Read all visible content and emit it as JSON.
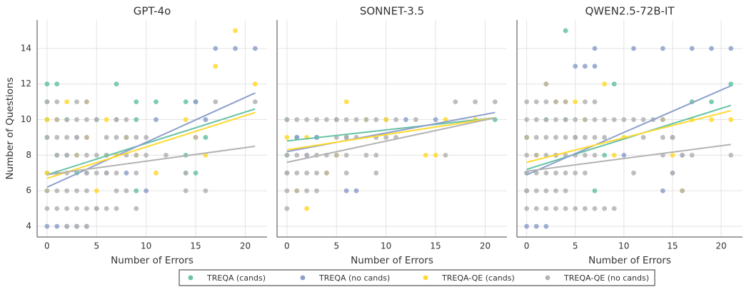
{
  "chart_data": [
    {
      "type": "scatter",
      "title": "GPT-4o",
      "xlabel": "Number of Errors",
      "ylabel": "Number of Questions",
      "xlim": [
        -1,
        22.2
      ],
      "ylim": [
        3.4,
        15.6
      ],
      "xticks": [
        0,
        5,
        10,
        15,
        20
      ],
      "yticks": [
        4,
        6,
        8,
        10,
        12,
        14
      ],
      "grid": true,
      "series": [
        {
          "name": "TREQA (cands)",
          "color": "#66c2a5",
          "x": [
            0,
            1,
            0,
            7,
            9,
            11,
            14,
            15,
            0,
            2,
            5,
            9,
            16,
            0,
            3,
            6,
            14,
            15,
            14,
            9,
            0,
            1
          ],
          "values": [
            12,
            12,
            11,
            12,
            11,
            11,
            11,
            11,
            10,
            10,
            10,
            10,
            9,
            7,
            7,
            8,
            8,
            7,
            7,
            6,
            9,
            8
          ],
          "trend": {
            "x": [
              0,
              21
            ],
            "values": [
              6.9,
              10.6
            ]
          }
        },
        {
          "name": "TREQA (no cands)",
          "color": "#8da0cb",
          "x": [
            17,
            19,
            21,
            15,
            16,
            7,
            11,
            10,
            8,
            5,
            0,
            1,
            2,
            3,
            4,
            4,
            2,
            3,
            6,
            8
          ],
          "values": [
            14,
            14,
            14,
            11,
            10,
            10,
            10,
            6,
            7,
            5,
            4,
            4,
            4,
            4,
            4,
            7,
            8,
            9,
            7,
            9
          ],
          "trend": {
            "x": [
              0,
              21
            ],
            "values": [
              6.2,
              11.5
            ]
          }
        },
        {
          "name": "TREQA-QE (cands)",
          "color": "#ffd92f",
          "x": [
            19,
            17,
            21,
            2,
            4,
            0,
            1,
            4,
            6,
            8,
            9,
            14,
            11,
            15,
            16,
            0,
            0,
            3,
            5,
            7
          ],
          "values": [
            15,
            13,
            12,
            11,
            11,
            10,
            10,
            9,
            10,
            9,
            8,
            10,
            7,
            9,
            8,
            7,
            6,
            8,
            6,
            8
          ],
          "trend": {
            "x": [
              0,
              21
            ],
            "values": [
              6.7,
              10.4
            ]
          }
        },
        {
          "name": "TREQA-QE (no cands)",
          "color": "#b3b3b3",
          "x": [
            0,
            1,
            3,
            4,
            17,
            21,
            1,
            2,
            3,
            4,
            5,
            7,
            8,
            0,
            1,
            2,
            3,
            4,
            6,
            7,
            8,
            9,
            10,
            15,
            1,
            2,
            3,
            4,
            5,
            6,
            8,
            9,
            10,
            12,
            1,
            2,
            4,
            5,
            6,
            7,
            9,
            14,
            0,
            1,
            2,
            3,
            4,
            7,
            8,
            14,
            16,
            0,
            1,
            2,
            3,
            4,
            5,
            6,
            7,
            9,
            2,
            3,
            4
          ],
          "values": [
            11,
            11,
            11,
            11,
            11,
            11,
            10,
            10,
            10,
            10,
            10,
            10,
            10,
            9,
            9,
            9,
            9,
            9,
            9,
            9,
            9,
            9,
            9,
            9,
            8,
            8,
            8,
            8,
            8,
            8,
            8,
            8,
            8,
            8,
            7,
            7,
            7,
            7,
            7,
            7,
            7,
            7,
            6,
            6,
            6,
            6,
            6,
            6,
            6,
            6,
            6,
            5,
            5,
            5,
            5,
            5,
            5,
            5,
            5,
            5,
            4,
            4,
            4
          ],
          "trend": {
            "x": [
              0,
              21
            ],
            "values": [
              6.9,
              8.5
            ]
          }
        }
      ]
    },
    {
      "type": "scatter",
      "title": "SONNET-3.5",
      "xlabel": "Number of Errors",
      "xlim": [
        -1,
        22.2
      ],
      "ylim": [
        3.4,
        15.6
      ],
      "xticks": [
        0,
        5,
        10,
        15,
        20
      ],
      "yticks": [
        4,
        6,
        8,
        10,
        12,
        14
      ],
      "grid": true,
      "series": [
        {
          "color": "#66c2a5",
          "x": [
            0,
            21,
            6,
            3,
            1,
            0
          ],
          "values": [
            10,
            10,
            9,
            9,
            9,
            8
          ],
          "trend": {
            "x": [
              0,
              21
            ],
            "values": [
              8.8,
              10.1
            ]
          }
        },
        {
          "color": "#8da0cb",
          "x": [
            1,
            3,
            6,
            10,
            12,
            15,
            6,
            7,
            0,
            2,
            5
          ],
          "values": [
            9,
            9,
            9,
            10,
            10,
            10,
            6,
            6,
            7,
            8,
            10
          ],
          "trend": {
            "x": [
              0,
              21
            ],
            "values": [
              8.2,
              10.4
            ]
          }
        },
        {
          "color": "#ffd92f",
          "x": [
            6,
            10,
            16,
            19,
            0,
            2,
            14,
            15,
            4,
            1,
            2,
            8,
            5
          ],
          "values": [
            11,
            10,
            10,
            10,
            9,
            9,
            8,
            8,
            7,
            6,
            5,
            10,
            8
          ],
          "trend": {
            "x": [
              0,
              21
            ],
            "values": [
              8.3,
              10.1
            ]
          }
        },
        {
          "color": "#b3b3b3",
          "x": [
            17,
            19,
            21,
            0,
            1,
            2,
            3,
            4,
            5,
            6,
            7,
            8,
            9,
            11,
            13,
            5,
            6,
            7,
            9,
            10,
            11,
            0,
            1,
            2,
            3,
            4,
            5,
            6,
            8,
            9,
            16,
            0,
            1,
            2,
            3,
            4,
            6,
            9,
            0,
            1,
            2,
            3,
            0
          ],
          "values": [
            11,
            11,
            11,
            10,
            10,
            10,
            10,
            10,
            10,
            10,
            10,
            10,
            10,
            10,
            10,
            9,
            9,
            9,
            9,
            9,
            9,
            8,
            8,
            8,
            8,
            8,
            8,
            8,
            8,
            8,
            8,
            7,
            7,
            7,
            7,
            7,
            7,
            7,
            6,
            6,
            6,
            6,
            5
          ],
          "trend": {
            "x": [
              0,
              21
            ],
            "values": [
              7.6,
              10.1
            ]
          }
        }
      ]
    },
    {
      "type": "scatter",
      "title": "QWEN2.5-72B-IT",
      "xlabel": "Number of Errors",
      "xlim": [
        -1,
        22.2
      ],
      "ylim": [
        3.4,
        15.6
      ],
      "xticks": [
        0,
        5,
        10,
        15,
        20
      ],
      "yticks": [
        4,
        6,
        8,
        10,
        12,
        14
      ],
      "grid": true,
      "series": [
        {
          "color": "#66c2a5",
          "x": [
            4,
            9,
            21,
            17,
            19,
            4,
            7,
            2,
            5,
            0,
            8
          ],
          "values": [
            15,
            12,
            12,
            11,
            11,
            10,
            6,
            10,
            9,
            9,
            8
          ],
          "trend": {
            "x": [
              0,
              21
            ],
            "values": [
              7.2,
              10.8
            ]
          }
        },
        {
          "color": "#8da0cb",
          "x": [
            7,
            11,
            14,
            17,
            19,
            21,
            5,
            6,
            7,
            0,
            0,
            1,
            2,
            14,
            15,
            15,
            16,
            10,
            0,
            3
          ],
          "values": [
            14,
            14,
            14,
            14,
            14,
            14,
            13,
            13,
            13,
            6,
            4,
            4,
            4,
            6,
            7,
            9,
            8,
            8,
            7,
            8
          ],
          "trend": {
            "x": [
              0,
              21
            ],
            "values": [
              6.9,
              11.9
            ]
          }
        },
        {
          "color": "#ffd92f",
          "x": [
            2,
            3,
            4,
            5,
            8,
            6,
            9,
            14,
            15,
            16,
            19,
            21,
            0,
            1,
            3,
            10,
            17
          ],
          "values": [
            12,
            11,
            11,
            11,
            12,
            10,
            8,
            10,
            8,
            6,
            10,
            10,
            9,
            8,
            8,
            9,
            10
          ],
          "trend": {
            "x": [
              0,
              21
            ],
            "values": [
              7.6,
              10.5
            ]
          }
        },
        {
          "color": "#b3b3b3",
          "x": [
            0,
            1,
            2,
            3,
            4,
            5,
            6,
            7,
            8,
            9,
            10,
            11,
            12,
            13,
            14,
            0,
            1,
            2,
            3,
            4,
            5,
            6,
            7,
            8,
            12,
            14,
            15,
            0,
            1,
            2,
            3,
            4,
            5,
            6,
            7,
            14,
            16,
            17,
            21,
            0,
            1,
            2,
            3,
            4,
            5,
            6,
            11,
            15,
            0,
            1,
            2,
            3,
            4,
            16,
            0,
            1,
            2,
            3,
            4,
            5,
            6,
            7,
            8,
            9,
            0,
            1,
            2,
            3,
            4,
            6,
            7,
            2
          ],
          "values": [
            10,
            10,
            10,
            10,
            10,
            10,
            10,
            10,
            10,
            10,
            10,
            10,
            10,
            10,
            10,
            9,
            9,
            9,
            9,
            9,
            9,
            9,
            9,
            9,
            9,
            9,
            9,
            8,
            8,
            8,
            8,
            8,
            8,
            8,
            8,
            8,
            8,
            8,
            8,
            7,
            7,
            7,
            7,
            7,
            7,
            7,
            7,
            7,
            6,
            6,
            6,
            6,
            6,
            6,
            5,
            5,
            5,
            5,
            5,
            5,
            5,
            5,
            5,
            5,
            11,
            11,
            11,
            11,
            11,
            11,
            11,
            12
          ],
          "trend": {
            "x": [
              0,
              21
            ],
            "values": [
              7.1,
              8.6
            ]
          }
        }
      ]
    }
  ]
}
